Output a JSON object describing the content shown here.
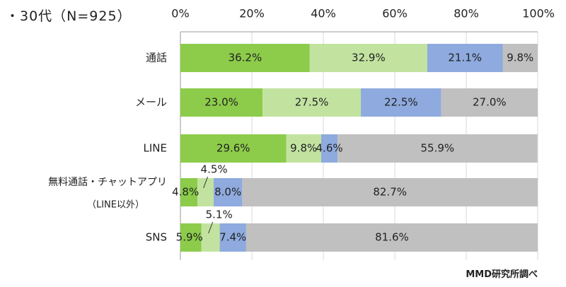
{
  "subtitle": "・30代（N=925）",
  "credit": "MMD研究所調べ",
  "chart_data": {
    "type": "bar",
    "orientation": "horizontal",
    "stacked": true,
    "percent": true,
    "xlim": [
      0,
      100
    ],
    "xticks": [
      "0%",
      "20%",
      "40%",
      "60%",
      "80%",
      "100%"
    ],
    "grid": true,
    "legend": "none",
    "categories": [
      {
        "label": "通話",
        "values": [
          36.2,
          32.9,
          21.1,
          9.8
        ],
        "labels": [
          "36.2%",
          "32.9%",
          "21.1%",
          "9.8%"
        ]
      },
      {
        "label": "メール",
        "values": [
          23.0,
          27.5,
          22.5,
          27.0
        ],
        "labels": [
          "23.0%",
          "27.5%",
          "22.5%",
          "27.0%"
        ]
      },
      {
        "label": "LINE",
        "values": [
          29.6,
          9.8,
          4.6,
          55.9
        ],
        "labels": [
          "29.6%",
          "9.8%",
          "4.6%",
          "55.9%"
        ]
      },
      {
        "label": "無料通話・チャットアプリ",
        "label2": "（LINE以外）",
        "values": [
          4.8,
          4.5,
          8.0,
          82.7
        ],
        "labels": [
          "4.8%",
          "4.5%",
          "8.0%",
          "82.7%"
        ]
      },
      {
        "label": "SNS",
        "values": [
          5.9,
          5.1,
          7.4,
          81.6
        ],
        "labels": [
          "5.9%",
          "5.1%",
          "7.4%",
          "81.6%"
        ]
      }
    ],
    "series_colors": [
      "#8ccc4a",
      "#c2e3a0",
      "#8eaade",
      "#c0c0c0"
    ]
  }
}
